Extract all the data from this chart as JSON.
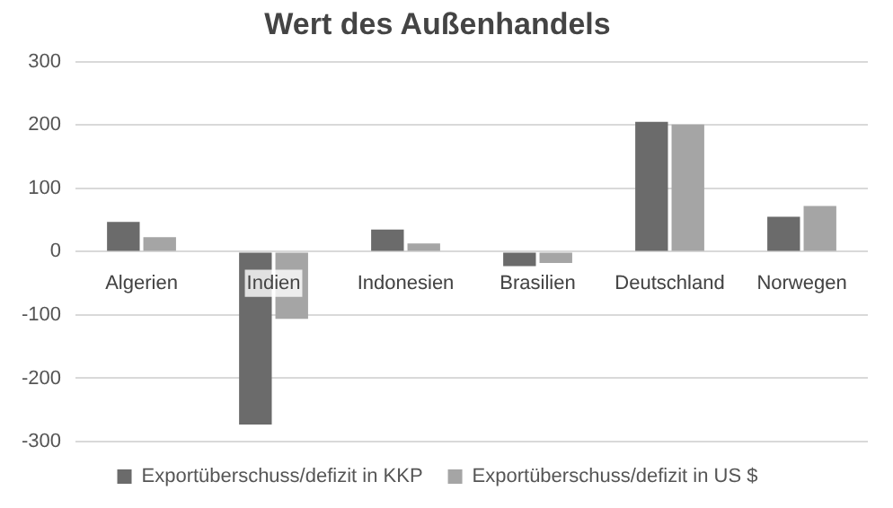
{
  "chart_data": {
    "type": "bar",
    "title": "Wert des Außenhandels",
    "categories": [
      "Algerien",
      "Indien",
      "Indonesien",
      "Brasilien",
      "Deutschland",
      "Norwegen"
    ],
    "series": [
      {
        "name": "Exportüberschuss/defizit in KKP",
        "color": "#6b6b6b",
        "values": [
          47,
          -273,
          35,
          -23,
          205,
          55
        ]
      },
      {
        "name": "Exportüberschuss/defizit in US $",
        "color": "#a5a5a5",
        "values": [
          23,
          -106,
          13,
          -18,
          201,
          72
        ]
      }
    ],
    "ylim": [
      -300,
      300
    ],
    "yticks": [
      -300,
      -200,
      -100,
      0,
      100,
      200,
      300
    ],
    "grid": "y",
    "legend": "bottom"
  }
}
